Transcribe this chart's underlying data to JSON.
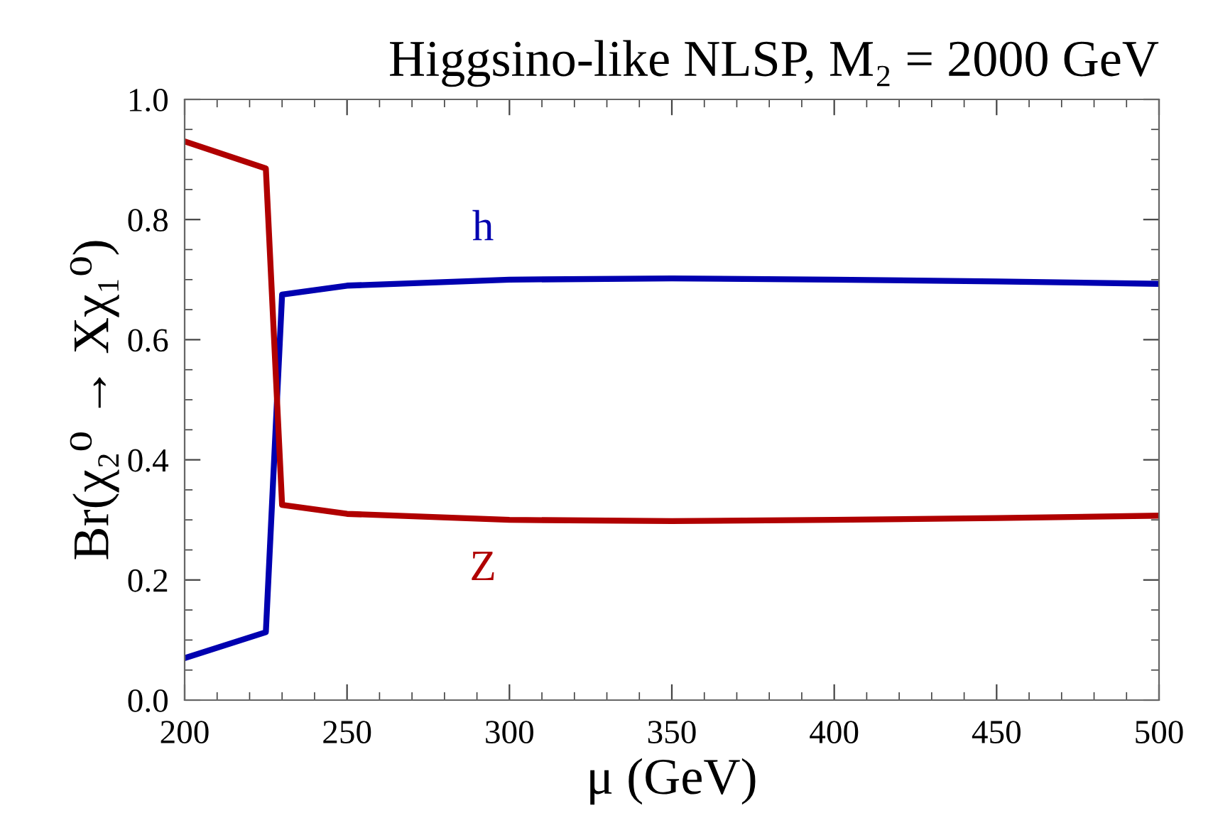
{
  "chart_data": {
    "type": "line",
    "title": "Higgsino-like NLSP, M₂ = 2000 GeV",
    "xlabel": "μ (GeV)",
    "ylabel": "Br(χ₂⁰ → Xχ₁⁰)",
    "xlim": [
      200,
      500
    ],
    "xticks": [
      200,
      250,
      300,
      350,
      400,
      450,
      500
    ],
    "ylim": [
      0,
      1
    ],
    "yticks": [
      {
        "value": 0,
        "label": "0.0"
      },
      0.2,
      0.4,
      0.6,
      0.8,
      {
        "value": 1,
        "label": "1.0"
      }
    ],
    "grid": false,
    "legend": false,
    "line_style": "solid",
    "marker": "none",
    "series": [
      {
        "name": "h",
        "color": "#0000b0",
        "x": [
          200,
          225,
          230,
          250,
          300,
          350,
          400,
          450,
          500
        ],
        "values": [
          0.07,
          0.113,
          0.675,
          0.69,
          0.7,
          0.702,
          0.7,
          0.697,
          0.693
        ]
      },
      {
        "name": "Z",
        "color": "#b00000",
        "x": [
          200,
          225,
          230,
          250,
          300,
          350,
          400,
          450,
          500
        ],
        "values": [
          0.93,
          0.885,
          0.325,
          0.31,
          0.3,
          0.298,
          0.3,
          0.303,
          0.307
        ]
      }
    ]
  }
}
